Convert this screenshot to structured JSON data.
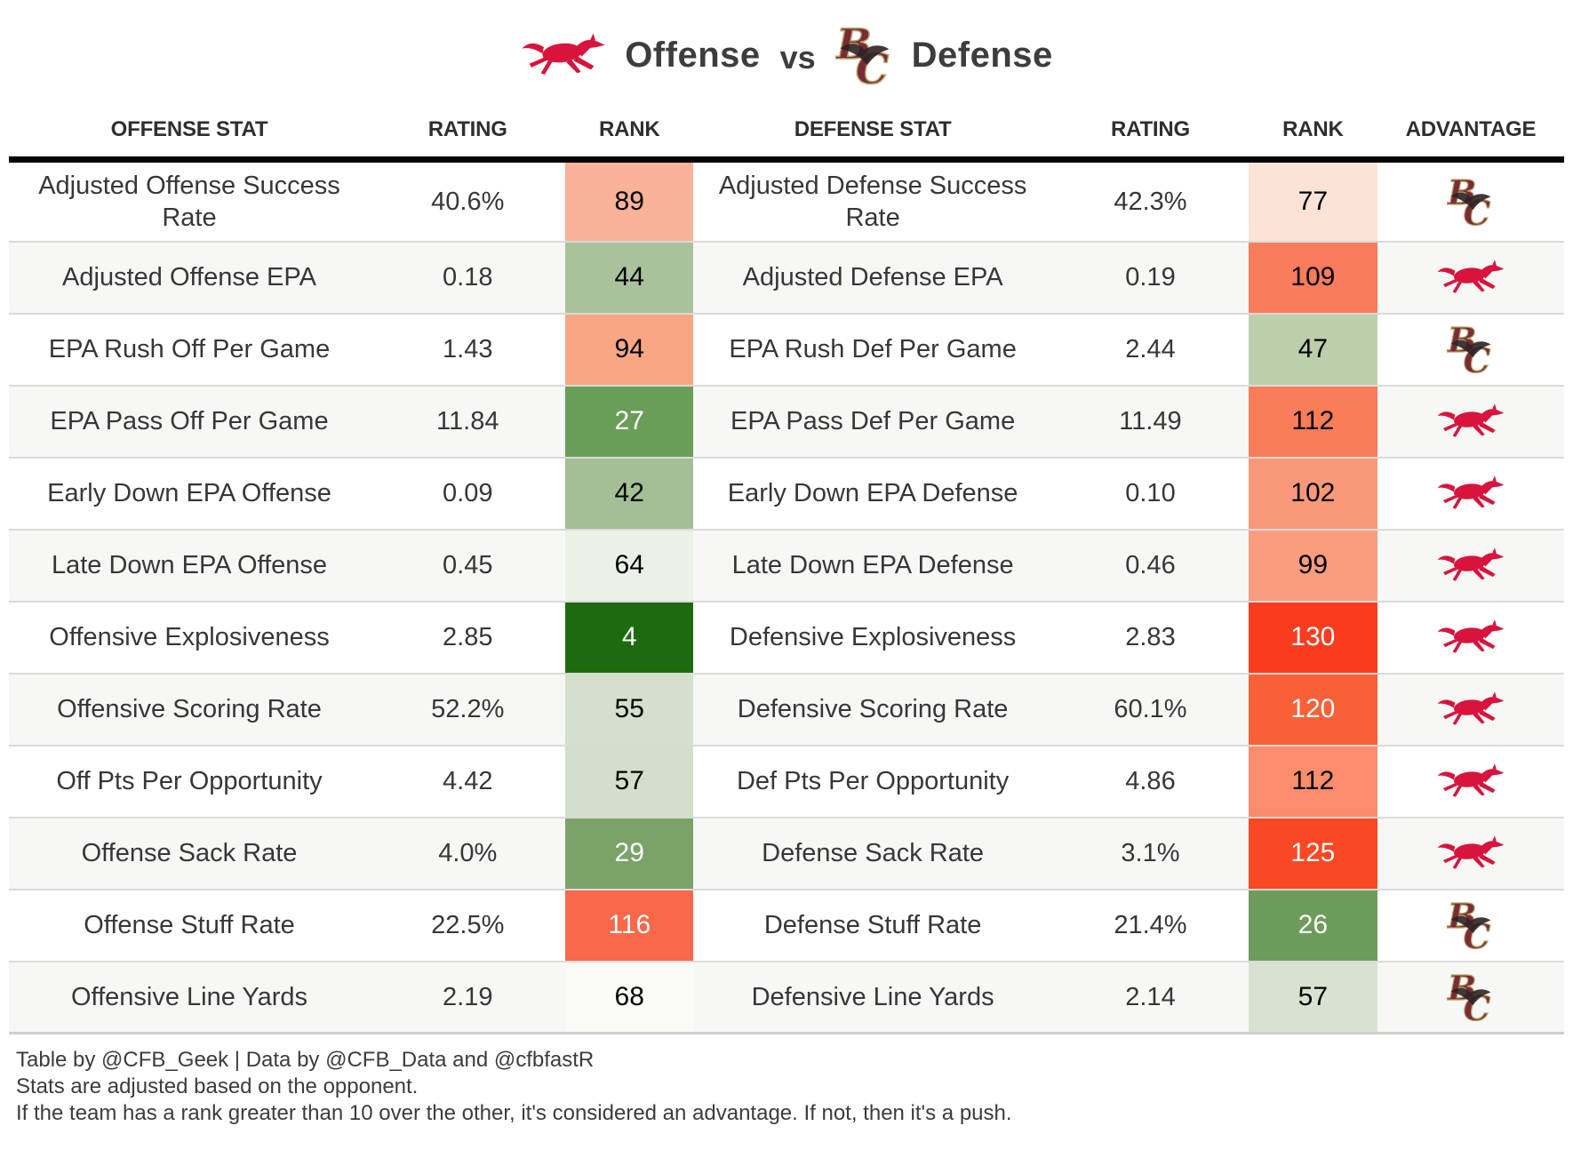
{
  "title": {
    "offense_label": "Offense",
    "vs_label": "vs",
    "defense_label": "Defense"
  },
  "icons": {
    "offense_team_icon": "smu-mustang-icon",
    "defense_team_icon": "bc-eagle-icon"
  },
  "colors": {
    "smu_red": "#d8143c",
    "bc_maroon": "#7a2b35",
    "bc_gold": "#b3a369",
    "header_rule": "#050505",
    "row_stripe": "#f7f7f6",
    "row_separator": "#dadada",
    "best_rank_green": "#1e6b0f",
    "worst_rank_red": "#fa3c1e"
  },
  "chart_data": {
    "type": "table",
    "title": "Offense vs Defense",
    "columns": [
      "OFFENSE STAT",
      "RATING",
      "RANK",
      "DEFENSE STAT",
      "RATING",
      "RANK",
      "ADVANTAGE"
    ],
    "rows": [
      {
        "offense_stat": "Adjusted Offense Success Rate",
        "offense_rating": "40.6%",
        "offense_rank": 89,
        "offense_rank_bg": "#f9b29a",
        "offense_rank_color": "#000000",
        "defense_stat": "Adjusted Defense Success Rate",
        "defense_rating": "42.3%",
        "defense_rank": 77,
        "defense_rank_bg": "#fce3d8",
        "defense_rank_color": "#000000",
        "advantage": "BC"
      },
      {
        "offense_stat": "Adjusted Offense EPA",
        "offense_rating": "0.18",
        "offense_rank": 44,
        "offense_rank_bg": "#a9c29b",
        "offense_rank_color": "#000000",
        "defense_stat": "Adjusted Defense EPA",
        "defense_rating": "0.19",
        "defense_rank": 109,
        "defense_rank_bg": "#f97d5c",
        "defense_rank_color": "#000000",
        "advantage": "SMU"
      },
      {
        "offense_stat": "EPA Rush Off Per Game",
        "offense_rating": "1.43",
        "offense_rank": 94,
        "offense_rank_bg": "#f9a685",
        "offense_rank_color": "#000000",
        "defense_stat": "EPA Rush Def Per Game",
        "defense_rating": "2.44",
        "defense_rank": 47,
        "defense_rank_bg": "#bccfac",
        "defense_rank_color": "#000000",
        "advantage": "BC"
      },
      {
        "offense_stat": "EPA Pass Off Per Game",
        "offense_rating": "11.84",
        "offense_rank": 27,
        "offense_rank_bg": "#699e58",
        "offense_rank_color": "#ffffff",
        "defense_stat": "EPA Pass Def Per Game",
        "defense_rating": "11.49",
        "defense_rank": 112,
        "defense_rank_bg": "#f97d58",
        "defense_rank_color": "#000000",
        "advantage": "SMU"
      },
      {
        "offense_stat": "Early Down EPA Offense",
        "offense_rating": "0.09",
        "offense_rank": 42,
        "offense_rank_bg": "#a4bf95",
        "offense_rank_color": "#000000",
        "defense_stat": "Early Down EPA Defense",
        "defense_rating": "0.10",
        "defense_rank": 102,
        "defense_rank_bg": "#f9997a",
        "defense_rank_color": "#000000",
        "advantage": "SMU"
      },
      {
        "offense_stat": "Late Down EPA Offense",
        "offense_rating": "0.45",
        "offense_rank": 64,
        "offense_rank_bg": "#ebf1e7",
        "offense_rank_color": "#000000",
        "defense_stat": "Late Down EPA Defense",
        "defense_rating": "0.46",
        "defense_rank": 99,
        "defense_rank_bg": "#f99d7e",
        "defense_rank_color": "#000000",
        "advantage": "SMU"
      },
      {
        "offense_stat": "Offensive Explosiveness",
        "offense_rating": "2.85",
        "offense_rank": 4,
        "offense_rank_bg": "#1e6b0f",
        "offense_rank_color": "#ffffff",
        "defense_stat": "Defensive Explosiveness",
        "defense_rating": "2.83",
        "defense_rank": 130,
        "defense_rank_bg": "#fa3c1e",
        "defense_rank_color": "#ffffff",
        "advantage": "SMU"
      },
      {
        "offense_stat": "Offensive Scoring Rate",
        "offense_rating": "52.2%",
        "offense_rank": 55,
        "offense_rank_bg": "#d4e0cc",
        "offense_rank_color": "#000000",
        "defense_stat": "Defensive Scoring Rate",
        "defense_rating": "60.1%",
        "defense_rank": 120,
        "defense_rank_bg": "#f96038",
        "defense_rank_color": "#ffffff",
        "advantage": "SMU"
      },
      {
        "offense_stat": "Off Pts Per Opportunity",
        "offense_rating": "4.42",
        "offense_rank": 57,
        "offense_rank_bg": "#d3dfca",
        "offense_rank_color": "#000000",
        "defense_stat": "Def Pts Per Opportunity",
        "defense_rating": "4.86",
        "defense_rank": 112,
        "defense_rank_bg": "#f98d6d",
        "defense_rank_color": "#000000",
        "advantage": "SMU"
      },
      {
        "offense_stat": "Offense Sack Rate",
        "offense_rating": "4.0%",
        "offense_rank": 29,
        "offense_rank_bg": "#7ba369",
        "offense_rank_color": "#ffffff",
        "defense_stat": "Defense Sack Rate",
        "defense_rating": "3.1%",
        "defense_rank": 125,
        "defense_rank_bg": "#f94824",
        "defense_rank_color": "#ffffff",
        "advantage": "SMU"
      },
      {
        "offense_stat": "Offense Stuff Rate",
        "offense_rating": "22.5%",
        "offense_rank": 116,
        "offense_rank_bg": "#f9684a",
        "offense_rank_color": "#ffffff",
        "defense_stat": "Defense Stuff Rate",
        "defense_rating": "21.4%",
        "defense_rank": 26,
        "defense_rank_bg": "#6b9c5b",
        "defense_rank_color": "#ffffff",
        "advantage": "BC"
      },
      {
        "offense_stat": "Offensive Line Yards",
        "offense_rating": "2.19",
        "offense_rank": 68,
        "offense_rank_bg": "#fafaf7",
        "offense_rank_color": "#000000",
        "defense_stat": "Defensive Line Yards",
        "defense_rating": "2.14",
        "defense_rank": 57,
        "defense_rank_bg": "#d8e2d0",
        "defense_rank_color": "#000000",
        "advantage": "BC"
      }
    ]
  },
  "footnotes": [
    "Table by @CFB_Geek | Data by @CFB_Data and @cfbfastR",
    "Stats are adjusted based on the opponent.",
    "If the team has a rank greater than 10 over the other, it's considered an advantage. If not, then it's a push."
  ]
}
